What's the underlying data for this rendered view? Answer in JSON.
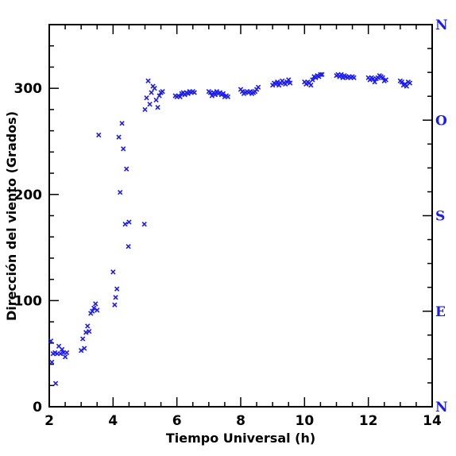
{
  "chart_data": {
    "type": "scatter",
    "xlabel": "Tiempo Universal (h)",
    "ylabel": "Dirección del viento (Grados)",
    "xlim": [
      2,
      14
    ],
    "ylim": [
      0,
      360
    ],
    "xticks": [
      2,
      4,
      6,
      8,
      10,
      12,
      14
    ],
    "yticks": [
      0,
      100,
      200,
      300
    ],
    "grid": false,
    "marker": "x",
    "series_color": "#1a1aff",
    "right_axis": {
      "labels": [
        "N",
        "E",
        "S",
        "O",
        "N"
      ],
      "values": [
        0,
        90,
        180,
        270,
        360
      ],
      "color": "#1a1aff"
    },
    "points": [
      [
        2.05,
        62
      ],
      [
        2.08,
        42
      ],
      [
        2.12,
        50
      ],
      [
        2.18,
        51
      ],
      [
        2.2,
        22
      ],
      [
        2.25,
        50
      ],
      [
        2.3,
        57
      ],
      [
        2.35,
        50
      ],
      [
        2.4,
        54
      ],
      [
        2.45,
        51
      ],
      [
        2.5,
        47
      ],
      [
        2.55,
        51
      ],
      [
        3.0,
        53
      ],
      [
        3.05,
        64
      ],
      [
        3.1,
        55
      ],
      [
        3.15,
        70
      ],
      [
        3.2,
        76
      ],
      [
        3.25,
        71
      ],
      [
        3.3,
        88
      ],
      [
        3.35,
        90
      ],
      [
        3.4,
        93
      ],
      [
        3.45,
        97
      ],
      [
        3.5,
        91
      ],
      [
        3.55,
        256
      ],
      [
        4.0,
        127
      ],
      [
        4.05,
        96
      ],
      [
        4.08,
        103
      ],
      [
        4.12,
        111
      ],
      [
        4.18,
        254
      ],
      [
        4.22,
        202
      ],
      [
        4.28,
        267
      ],
      [
        4.32,
        243
      ],
      [
        4.38,
        172
      ],
      [
        4.42,
        224
      ],
      [
        4.48,
        151
      ],
      [
        4.5,
        174
      ],
      [
        4.98,
        172
      ],
      [
        5.0,
        280
      ],
      [
        5.05,
        291
      ],
      [
        5.1,
        307
      ],
      [
        5.15,
        285
      ],
      [
        5.2,
        296
      ],
      [
        5.25,
        302
      ],
      [
        5.3,
        300
      ],
      [
        5.35,
        289
      ],
      [
        5.4,
        282
      ],
      [
        5.45,
        293
      ],
      [
        5.5,
        296
      ],
      [
        5.55,
        297
      ],
      [
        5.95,
        293
      ],
      [
        6.0,
        292
      ],
      [
        6.05,
        293
      ],
      [
        6.1,
        292
      ],
      [
        6.15,
        295
      ],
      [
        6.2,
        296
      ],
      [
        6.25,
        294
      ],
      [
        6.3,
        296
      ],
      [
        6.35,
        295
      ],
      [
        6.4,
        297
      ],
      [
        6.45,
        296
      ],
      [
        6.5,
        297
      ],
      [
        6.55,
        296
      ],
      [
        7.0,
        297
      ],
      [
        7.05,
        296
      ],
      [
        7.1,
        293
      ],
      [
        7.15,
        296
      ],
      [
        7.2,
        294
      ],
      [
        7.25,
        297
      ],
      [
        7.3,
        295
      ],
      [
        7.35,
        296
      ],
      [
        7.4,
        294
      ],
      [
        7.45,
        295
      ],
      [
        7.5,
        292
      ],
      [
        7.55,
        293
      ],
      [
        7.6,
        292
      ],
      [
        8.0,
        299
      ],
      [
        8.05,
        297
      ],
      [
        8.1,
        295
      ],
      [
        8.15,
        296
      ],
      [
        8.2,
        297
      ],
      [
        8.25,
        296
      ],
      [
        8.3,
        297
      ],
      [
        8.35,
        295
      ],
      [
        8.4,
        296
      ],
      [
        8.45,
        297
      ],
      [
        8.5,
        299
      ],
      [
        8.55,
        301
      ],
      [
        9.0,
        303
      ],
      [
        9.05,
        305
      ],
      [
        9.1,
        304
      ],
      [
        9.15,
        306
      ],
      [
        9.2,
        303
      ],
      [
        9.25,
        305
      ],
      [
        9.3,
        307
      ],
      [
        9.35,
        305
      ],
      [
        9.4,
        304
      ],
      [
        9.45,
        306
      ],
      [
        9.5,
        308
      ],
      [
        9.55,
        305
      ],
      [
        10.0,
        306
      ],
      [
        10.05,
        304
      ],
      [
        10.1,
        306
      ],
      [
        10.15,
        305
      ],
      [
        10.2,
        303
      ],
      [
        10.25,
        308
      ],
      [
        10.3,
        311
      ],
      [
        10.35,
        310
      ],
      [
        10.4,
        312
      ],
      [
        10.45,
        311
      ],
      [
        10.5,
        313
      ],
      [
        10.55,
        313
      ],
      [
        11.0,
        312
      ],
      [
        11.05,
        313
      ],
      [
        11.1,
        311
      ],
      [
        11.15,
        313
      ],
      [
        11.2,
        310
      ],
      [
        11.25,
        312
      ],
      [
        11.3,
        311
      ],
      [
        11.35,
        310
      ],
      [
        11.4,
        311
      ],
      [
        11.45,
        310
      ],
      [
        11.5,
        311
      ],
      [
        11.55,
        310
      ],
      [
        12.0,
        310
      ],
      [
        12.05,
        308
      ],
      [
        12.1,
        310
      ],
      [
        12.15,
        309
      ],
      [
        12.2,
        306
      ],
      [
        12.25,
        309
      ],
      [
        12.3,
        310
      ],
      [
        12.35,
        312
      ],
      [
        12.4,
        311
      ],
      [
        12.45,
        310
      ],
      [
        12.5,
        307
      ],
      [
        12.55,
        308
      ],
      [
        13.0,
        307
      ],
      [
        13.05,
        306
      ],
      [
        13.1,
        303
      ],
      [
        13.15,
        304
      ],
      [
        13.2,
        302
      ],
      [
        13.25,
        306
      ],
      [
        13.3,
        305
      ]
    ]
  }
}
